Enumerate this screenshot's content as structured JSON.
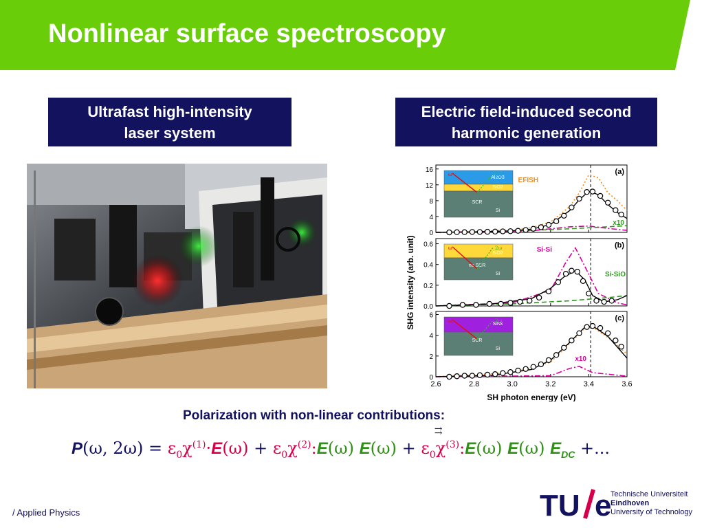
{
  "slide": {
    "title": "Nonlinear surface spectroscopy",
    "accent_green": "#6acd0a",
    "navy": "#13125f"
  },
  "left_box": {
    "line1": "Ultrafast high-intensity",
    "line2": "laser system"
  },
  "right_box": {
    "line1": "Electric field-induced second",
    "line2": "harmonic generation"
  },
  "photo": {
    "description_icon": "laser-optics-photo"
  },
  "chart_data": {
    "type": "line",
    "xlabel": "SH photon energy (eV)",
    "ylabel": "SHG intensity (arb. unit)",
    "x_ticks": [
      "2.6",
      "2.8",
      "3.0",
      "3.2",
      "3.4",
      "3.6"
    ],
    "xlim": [
      2.6,
      3.6
    ],
    "panels": [
      {
        "label": "(a)",
        "ylim": [
          0,
          17
        ],
        "y_ticks": [
          "0",
          "4",
          "8",
          "12",
          "16"
        ],
        "dashed_line_x": 3.41,
        "annotations": [
          "EFISH",
          "x10"
        ],
        "inset": {
          "omega": "ω",
          "two_omega": "2ω",
          "layers": [
            "Al2O3",
            "SiO2",
            "SCR",
            "Si"
          ]
        },
        "series": [
          {
            "name": "EFISH",
            "style": "dotted",
            "color": "#f28c1a",
            "x": [
              2.6,
              2.8,
              3.0,
              3.1,
              3.2,
              3.3,
              3.35,
              3.4,
              3.45,
              3.5,
              3.55,
              3.6
            ],
            "y": [
              0,
              0.2,
              0.6,
              1.2,
              2.6,
              6.5,
              10,
              14.5,
              13.8,
              10,
              8,
              5.5
            ]
          },
          {
            "name": "Si-SiO",
            "style": "dashed",
            "color": "#2c9c1c",
            "x": [
              2.6,
              3.0,
              3.3,
              3.5,
              3.6
            ],
            "y": [
              0,
              0.3,
              0.9,
              1.4,
              1.7
            ]
          },
          {
            "name": "Si-Si",
            "style": "dashdot",
            "color": "#d6009a",
            "x": [
              2.6,
              3.1,
              3.3,
              3.4,
              3.5,
              3.6
            ],
            "y": [
              0,
              0.4,
              1.4,
              1.6,
              1.0,
              0.5
            ]
          },
          {
            "name": "fit",
            "style": "solid",
            "color": "#000000",
            "x": [
              2.6,
              2.8,
              3.0,
              3.1,
              3.2,
              3.3,
              3.35,
              3.4,
              3.45,
              3.5,
              3.55,
              3.6
            ],
            "y": [
              0,
              0.1,
              0.4,
              0.8,
              2.0,
              5.5,
              8.2,
              10.4,
              9.5,
              7.0,
              5.0,
              3.5
            ]
          }
        ],
        "data_points": {
          "x": [
            2.67,
            2.71,
            2.75,
            2.79,
            2.83,
            2.87,
            2.91,
            2.95,
            2.99,
            3.03,
            3.07,
            3.11,
            3.15,
            3.19,
            3.23,
            3.27,
            3.31,
            3.35,
            3.39,
            3.42,
            3.46,
            3.5,
            3.54,
            3.57
          ],
          "y": [
            0,
            0.05,
            0.05,
            0.1,
            0.1,
            0.15,
            0.2,
            0.25,
            0.3,
            0.4,
            0.6,
            0.9,
            1.3,
            1.9,
            2.8,
            4.2,
            6.3,
            8.5,
            10.2,
            10.3,
            9.2,
            7.5,
            5.6,
            4.5
          ]
        }
      },
      {
        "label": "(b)",
        "ylim": [
          0,
          0.65
        ],
        "y_ticks": [
          "0.0",
          "0.2",
          "0.4",
          "0.6"
        ],
        "dashed_line_x": 3.41,
        "annotations": [
          "Si-Si",
          "Si-SiO"
        ],
        "inset": {
          "omega": "ω",
          "two_omega": "2ω",
          "layers": [
            "SiO2",
            "no SCR",
            "Si"
          ]
        },
        "series": [
          {
            "name": "Si-Si",
            "style": "dashdot",
            "color": "#d6009a",
            "x": [
              2.6,
              3.0,
              3.2,
              3.28,
              3.33,
              3.38,
              3.45,
              3.55,
              3.6
            ],
            "y": [
              0,
              0.03,
              0.15,
              0.42,
              0.56,
              0.38,
              0.12,
              0.03,
              0.01
            ]
          },
          {
            "name": "Si-SiO",
            "style": "dashed",
            "color": "#2c9c1c",
            "x": [
              2.6,
              3.0,
              3.3,
              3.5,
              3.6
            ],
            "y": [
              0,
              0.02,
              0.05,
              0.08,
              0.1
            ]
          },
          {
            "name": "fit",
            "style": "solid",
            "color": "#000000",
            "x": [
              2.6,
              2.9,
              3.1,
              3.2,
              3.27,
              3.33,
              3.38,
              3.42,
              3.48,
              3.55,
              3.6
            ],
            "y": [
              0,
              0.02,
              0.07,
              0.17,
              0.28,
              0.34,
              0.25,
              0.1,
              0.04,
              0.06,
              0.1
            ]
          }
        ],
        "data_points": {
          "x": [
            2.67,
            2.74,
            2.81,
            2.88,
            2.94,
            2.99,
            3.04,
            3.09,
            3.14,
            3.19,
            3.24,
            3.28,
            3.31,
            3.34,
            3.37,
            3.4,
            3.44,
            3.48,
            3.52
          ],
          "y": [
            0,
            0.01,
            0.01,
            0.02,
            0.02,
            0.03,
            0.04,
            0.05,
            0.08,
            0.14,
            0.23,
            0.31,
            0.34,
            0.33,
            0.24,
            0.12,
            0.05,
            0.04,
            0.05
          ]
        }
      },
      {
        "label": "(c)",
        "ylim": [
          0,
          6.3
        ],
        "y_ticks": [
          "0",
          "2",
          "4",
          "6"
        ],
        "dashed_line_x": 3.41,
        "annotations": [
          "x10"
        ],
        "inset": {
          "omega": "ω",
          "two_omega": "2ω",
          "layers": [
            "SiNx",
            "SCR",
            "Si"
          ]
        },
        "series": [
          {
            "name": "EFISH",
            "style": "dotted",
            "color": "#f28c1a",
            "x": [
              2.6,
              3.0,
              3.2,
              3.3,
              3.38,
              3.42,
              3.5,
              3.6
            ],
            "y": [
              0,
              0.4,
              1.4,
              3.2,
              4.7,
              4.8,
              3.8,
              2.2
            ]
          },
          {
            "name": "Si-Si",
            "style": "dashdot",
            "color": "#d6009a",
            "x": [
              2.6,
              3.2,
              3.3,
              3.35,
              3.42,
              3.6
            ],
            "y": [
              0,
              0.1,
              0.8,
              1.0,
              0.4,
              0.05
            ]
          },
          {
            "name": "fit",
            "style": "solid",
            "color": "#000000",
            "x": [
              2.6,
              2.9,
              3.1,
              3.2,
              3.3,
              3.38,
              3.42,
              3.5,
              3.6
            ],
            "y": [
              0,
              0.15,
              0.7,
              1.6,
              3.3,
              4.8,
              4.9,
              3.9,
              1.8
            ]
          }
        ],
        "data_points": {
          "x": [
            2.67,
            2.71,
            2.75,
            2.79,
            2.83,
            2.87,
            2.91,
            2.95,
            2.99,
            3.03,
            3.07,
            3.11,
            3.15,
            3.19,
            3.23,
            3.27,
            3.31,
            3.35,
            3.39,
            3.42,
            3.46,
            3.5,
            3.54,
            3.57
          ],
          "y": [
            0,
            0.05,
            0.1,
            0.1,
            0.15,
            0.2,
            0.25,
            0.35,
            0.45,
            0.6,
            0.75,
            0.95,
            1.2,
            1.6,
            2.1,
            2.8,
            3.5,
            4.2,
            4.8,
            4.9,
            4.7,
            4.2,
            3.5,
            2.9
          ]
        }
      }
    ]
  },
  "formula": {
    "caption": "Polarization with non-linear contributions:",
    "P": "P",
    "args": "(ω, 2ω) = ",
    "eps1": "ε",
    "sub0": "0",
    "chi1": "χ",
    "sup1": "(1)",
    "dot1": "·",
    "E1": "E",
    "E1arg": "(ω)",
    "plus1": " + ",
    "sup2": "(2)",
    "colon2": ":",
    "E2a": "E",
    "E2aarg": "(ω) ",
    "E2b": "E",
    "E2barg": "(ω)",
    "plus2": " + ",
    "sup3": "(3)",
    "colon3": ":",
    "E3a": "E",
    "E3aarg": "(ω) ",
    "E3b": "E",
    "E3barg": "(ω) ",
    "Edc": "E",
    "Edc_sub": "DC",
    "tail": " +..."
  },
  "footer": {
    "text": "/ Applied Physics"
  },
  "logo": {
    "mark": "TU/e",
    "line1": "Technische Universiteit",
    "line2": "Eindhoven",
    "line3": "University of Technology"
  }
}
